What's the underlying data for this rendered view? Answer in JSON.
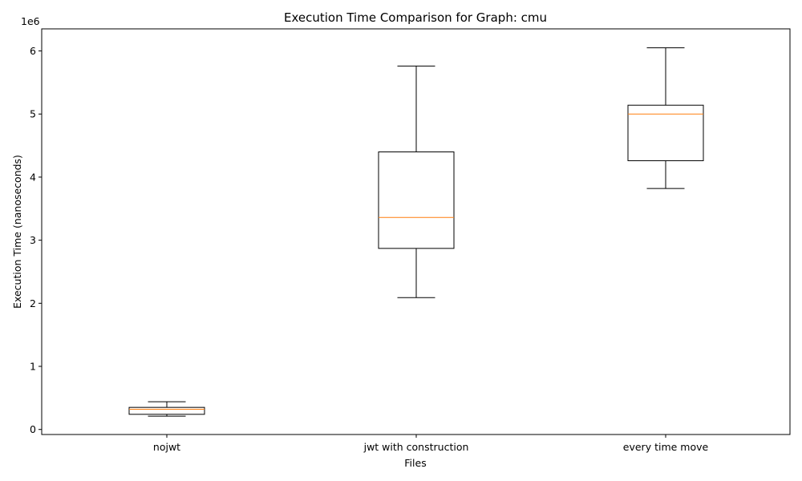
{
  "chart_data": {
    "type": "box",
    "title": "Execution Time Comparison for Graph: cmu",
    "xlabel": "Files",
    "ylabel": "Execution Time (nanoseconds)",
    "y_offset_label": "1e6",
    "y_scale_factor": 1000000,
    "ylim": [
      -80000,
      6350000
    ],
    "yticks": [
      0,
      1000000,
      2000000,
      3000000,
      4000000,
      5000000,
      6000000
    ],
    "ytick_labels": [
      "0",
      "1",
      "2",
      "3",
      "4",
      "5",
      "6"
    ],
    "categories": [
      "nojwt",
      "jwt with construction",
      "every time move"
    ],
    "boxes": [
      {
        "name": "nojwt",
        "whisker_low": 210000,
        "q1": 240000,
        "median": 320000,
        "q3": 350000,
        "whisker_high": 440000
      },
      {
        "name": "jwt with construction",
        "whisker_low": 2090000,
        "q1": 2870000,
        "median": 3360000,
        "q3": 4400000,
        "whisker_high": 5760000
      },
      {
        "name": "every time move",
        "whisker_low": 3820000,
        "q1": 4260000,
        "median": 5000000,
        "q3": 5140000,
        "whisker_high": 6050000
      }
    ],
    "box_color": "#000000",
    "median_color": "#ff7f0e",
    "grid": false,
    "legend": "none"
  }
}
